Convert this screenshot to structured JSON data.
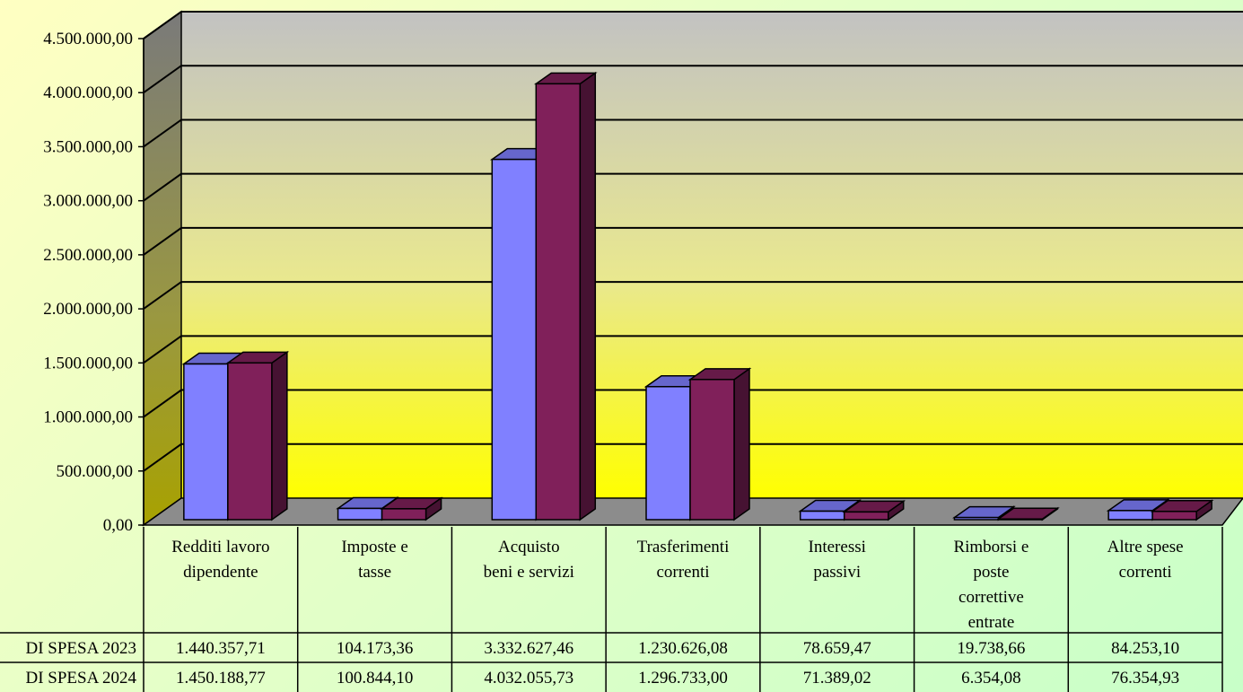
{
  "chart_data": {
    "type": "bar",
    "categories": [
      [
        "Redditi lavoro",
        "dipendente"
      ],
      [
        "Imposte e",
        "tasse"
      ],
      [
        "Acquisto",
        "beni e servizi"
      ],
      [
        "Trasferimenti",
        "correnti"
      ],
      [
        "Interessi",
        "passivi"
      ],
      [
        "Rimborsi e",
        "poste",
        "correttive",
        "entrate"
      ],
      [
        "Altre spese",
        "correnti"
      ]
    ],
    "series": [
      {
        "name": "DI SPESA 2023",
        "color": "#8080ff",
        "values": [
          1440357.71,
          104173.36,
          3332627.46,
          1230626.08,
          78659.47,
          19738.66,
          84253.1
        ],
        "labels": [
          "1.440.357,71",
          "104.173,36",
          "3.332.627,46",
          "1.230.626,08",
          "78.659,47",
          "19.738,66",
          "84.253,10"
        ]
      },
      {
        "name": "DI SPESA 2024",
        "color": "#80205a",
        "values": [
          1450188.77,
          100844.1,
          4032055.73,
          1296733.0,
          71389.02,
          6354.08,
          76354.93
        ],
        "labels": [
          "1.450.188,77",
          "100.844,10",
          "4.032.055,73",
          "1.296.733,00",
          "71.389,02",
          "6.354,08",
          "76.354,93"
        ]
      }
    ],
    "y_ticks": [
      "0,00",
      "500.000,00",
      "1.000.000,00",
      "1.500.000,00",
      "2.000.000,00",
      "2.500.000,00",
      "3.000.000,00",
      "3.500.000,00",
      "4.000.000,00",
      "4.500.000,00"
    ],
    "ylim": [
      0,
      4500000
    ],
    "grid": true,
    "style": "3d-column-with-data-table"
  }
}
